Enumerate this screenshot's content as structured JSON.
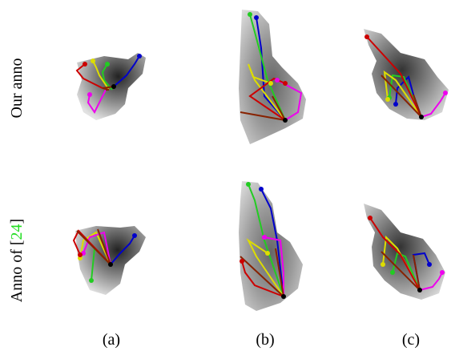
{
  "figure": {
    "row_labels": [
      {
        "text": "Our anno"
      },
      {
        "prefix": "Anno of [",
        "cite": "24",
        "suffix": "]"
      }
    ],
    "column_labels": [
      "(a)",
      "(b)",
      "(c)"
    ]
  },
  "colors": {
    "thumb": "#0000cc",
    "index": "#22cc22",
    "middle": "#dddd00",
    "ring": "#ee00ee",
    "pinky": "#cc0000",
    "palm": "#882200",
    "hand_dark": "#333333",
    "hand_light": "#d8d8d8"
  },
  "panels": [
    {
      "name": "our-anno-a"
    },
    {
      "name": "our-anno-b"
    },
    {
      "name": "our-anno-c"
    },
    {
      "name": "ref-anno-a"
    },
    {
      "name": "ref-anno-b"
    },
    {
      "name": "ref-anno-c"
    }
  ]
}
